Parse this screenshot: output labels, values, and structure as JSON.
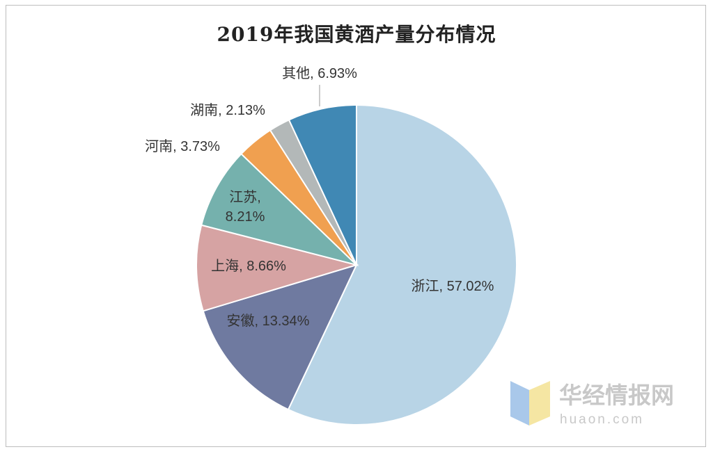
{
  "chart_data": {
    "type": "pie",
    "title": "2019年我国黄酒产量分布情况",
    "unit": "%",
    "slices": [
      {
        "name": "浙江",
        "value": 57.02,
        "label": "浙江, 57.02%",
        "color": "#b8d4e6"
      },
      {
        "name": "安徽",
        "value": 13.34,
        "label": "安徽, 13.34%",
        "color": "#6f7aa0"
      },
      {
        "name": "上海",
        "value": 8.66,
        "label": "上海, 8.66%",
        "color": "#d6a3a3"
      },
      {
        "name": "江苏",
        "value": 8.21,
        "label_lines": [
          "江苏,",
          "8.21%"
        ],
        "color": "#75b1ad"
      },
      {
        "name": "河南",
        "value": 3.73,
        "label": "河南, 3.73%",
        "color": "#f0a050"
      },
      {
        "name": "湖南",
        "value": 2.13,
        "label": "湖南, 2.13%",
        "color": "#b3b8b8"
      },
      {
        "name": "其他",
        "value": 6.93,
        "label": "其他, 6.93%",
        "color": "#4088b4"
      }
    ],
    "start_angle_deg": 0,
    "direction": "clockwise",
    "legend": "none"
  },
  "watermark": {
    "brand": "华经情报网",
    "domain": "huaon.com"
  }
}
